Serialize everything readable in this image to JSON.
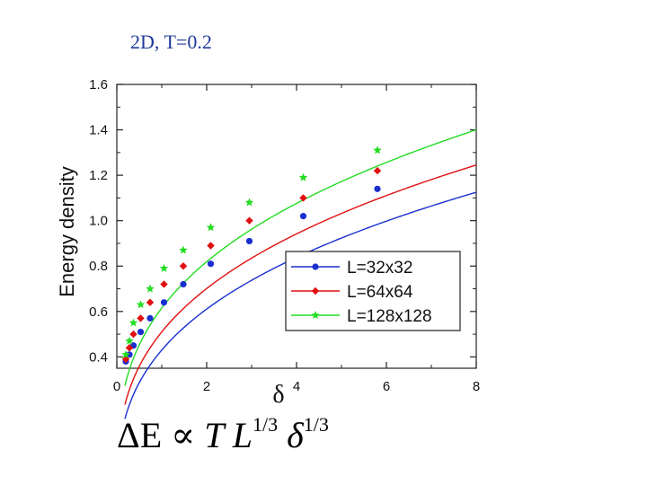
{
  "slide": {
    "title": "2D, T=0.2",
    "formula": {
      "delta_e": "ΔE",
      "prop": "∝",
      "t": "T",
      "l": "L",
      "exp1": "1/3",
      "delta": "δ",
      "exp2": "1/3"
    }
  },
  "chart_data": {
    "type": "line",
    "title": "",
    "xlabel": "δ",
    "ylabel": "Energy density",
    "xlim": [
      0,
      8
    ],
    "ylim": [
      0.35,
      1.6
    ],
    "x_ticks": [
      "0",
      "2",
      "4",
      "6",
      "8"
    ],
    "y_ticks": [
      "0.4",
      "0.6",
      "0.8",
      "1.0",
      "1.2",
      "1.4",
      "1.6"
    ],
    "legend_position": "lower-right",
    "series": [
      {
        "name": "L=32x32",
        "color": "#1a2fd0",
        "marker": "circle",
        "x": [
          0.2,
          0.28,
          0.37,
          0.53,
          0.74,
          1.05,
          1.48,
          2.09,
          2.95,
          4.15,
          5.8
        ],
        "y": [
          0.38,
          0.41,
          0.45,
          0.51,
          0.57,
          0.64,
          0.72,
          0.81,
          0.91,
          1.02,
          1.14
        ],
        "curve": {
          "a": 0.695,
          "b": -0.265,
          "start": 0.18
        }
      },
      {
        "name": "L=64x64",
        "color": "#e01010",
        "marker": "diamond",
        "x": [
          0.2,
          0.28,
          0.37,
          0.53,
          0.74,
          1.05,
          1.48,
          2.09,
          2.95,
          4.15,
          5.8
        ],
        "y": [
          0.39,
          0.44,
          0.5,
          0.57,
          0.64,
          0.72,
          0.8,
          0.89,
          1.0,
          1.1,
          1.22
        ],
        "curve": {
          "a": 0.735,
          "b": -0.225,
          "start": 0.18
        }
      },
      {
        "name": "L=128x128",
        "color": "#22dd22",
        "marker": "star",
        "x": [
          0.2,
          0.28,
          0.37,
          0.53,
          0.74,
          1.05,
          1.48,
          2.09,
          2.95,
          4.15,
          5.8
        ],
        "y": [
          0.41,
          0.47,
          0.55,
          0.63,
          0.7,
          0.79,
          0.87,
          0.97,
          1.08,
          1.19,
          1.31
        ],
        "curve": {
          "a": 0.785,
          "b": -0.17,
          "start": 0.18
        }
      }
    ]
  }
}
